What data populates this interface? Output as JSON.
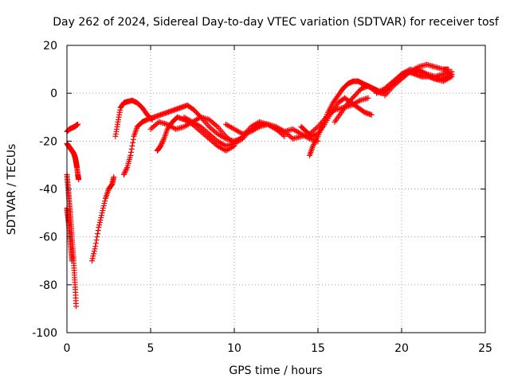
{
  "chart_data": {
    "type": "scatter",
    "title": "Day 262 of 2024, Sidereal Day-to-day VTEC variation (SDTVAR) for receiver tosf",
    "xlabel": "GPS time / hours",
    "ylabel": "SDTVAR / TECUs",
    "xlim": [
      0,
      25
    ],
    "ylim": [
      -100,
      20
    ],
    "xticks": [
      "0",
      "5",
      "10",
      "15",
      "20",
      "25"
    ],
    "yticks": [
      "-100",
      "-80",
      "-60",
      "-40",
      "-20",
      "0",
      "20"
    ],
    "grid": true,
    "marker": "+",
    "colors": {
      "points": "#ff0000",
      "grid": "#a0a0a0",
      "axes": "#000000"
    },
    "series": [
      {
        "segments": [
          {
            "x": [
              0.0,
              0.15,
              0.3,
              0.45,
              0.55,
              0.65
            ],
            "y": [
              -16,
              -15,
              -14.5,
              -14,
              -13.5,
              -13
            ]
          },
          {
            "x": [
              0.0,
              0.1,
              0.2,
              0.3,
              0.4,
              0.5,
              0.55,
              0.6,
              0.65,
              0.7
            ],
            "y": [
              -21,
              -22,
              -23,
              -24,
              -25,
              -27,
              -29,
              -31,
              -34,
              -36
            ]
          },
          {
            "x": [
              0.0,
              0.05,
              0.1,
              0.15,
              0.2,
              0.25,
              0.3,
              0.35,
              0.4,
              0.45,
              0.5,
              0.55
            ],
            "y": [
              -34,
              -38,
              -42,
              -46,
              -50,
              -55,
              -60,
              -65,
              -70,
              -76,
              -82,
              -89
            ]
          },
          {
            "x": [
              0.0,
              0.05,
              0.1,
              0.15,
              0.2,
              0.25,
              0.3
            ],
            "y": [
              -48,
              -51,
              -54,
              -58,
              -62,
              -66,
              -70
            ]
          },
          {
            "x": [
              1.5,
              1.7,
              1.9,
              2.1,
              2.3,
              2.5,
              2.7,
              2.8
            ],
            "y": [
              -70,
              -64,
              -56,
              -50,
              -44,
              -40,
              -38,
              -35
            ]
          },
          {
            "x": [
              2.9,
              3.05,
              3.2,
              3.4,
              3.6,
              3.9,
              4.2,
              4.5,
              4.8,
              5.1
            ],
            "y": [
              -18,
              -12,
              -6,
              -4,
              -3.5,
              -3,
              -4,
              -6,
              -9,
              -11
            ]
          },
          {
            "x": [
              3.4,
              3.6,
              3.8,
              4.0,
              4.2,
              4.5,
              4.8,
              5.2,
              5.6,
              6.0,
              6.4,
              6.8,
              7.2,
              7.6,
              8.0,
              8.5,
              9.0,
              9.5,
              10.0,
              10.4
            ],
            "y": [
              -34,
              -31,
              -26,
              -18,
              -14,
              -12,
              -11,
              -10,
              -9,
              -8,
              -7,
              -6,
              -5,
              -7,
              -10,
              -14,
              -17,
              -19,
              -20,
              -19
            ]
          },
          {
            "x": [
              5.4,
              5.6,
              5.8,
              6.0,
              6.3,
              6.6,
              7.0,
              7.5,
              8.0,
              8.5,
              9.0,
              9.5,
              10.0
            ],
            "y": [
              -24,
              -22,
              -19,
              -15,
              -12,
              -10,
              -11,
              -13,
              -16,
              -19,
              -22,
              -24,
              -22
            ]
          },
          {
            "x": [
              5.0,
              5.5,
              6.0,
              6.5,
              7.0,
              7.5,
              8.0,
              8.5,
              9.0,
              9.5,
              10.0,
              10.5,
              11.0,
              11.5,
              12.0,
              12.5,
              13.0
            ],
            "y": [
              -15,
              -12,
              -13,
              -15,
              -14,
              -12,
              -10,
              -11,
              -14,
              -18,
              -21,
              -19,
              -15,
              -13,
              -13,
              -15,
              -18
            ]
          },
          {
            "x": [
              7.0,
              7.5,
              8.0,
              8.5,
              9.0,
              9.5,
              10.0,
              10.5,
              11.0,
              11.5,
              12.0,
              12.5,
              13.0,
              13.5,
              14.0,
              14.5,
              15.0
            ],
            "y": [
              -10,
              -12,
              -14,
              -17,
              -20,
              -22,
              -21,
              -18,
              -14,
              -12,
              -13,
              -15,
              -16,
              -15,
              -17,
              -19,
              -20
            ]
          },
          {
            "x": [
              9.5,
              10.0,
              10.5,
              11.0,
              11.5,
              12.0,
              12.5,
              13.0,
              13.5,
              14.0,
              14.5,
              15.0,
              15.5,
              16.0,
              16.5,
              17.0,
              17.5,
              18.0
            ],
            "y": [
              -13,
              -15,
              -17,
              -16,
              -14,
              -13,
              -14,
              -16,
              -19,
              -18,
              -17,
              -14,
              -10,
              -7,
              -6,
              -5,
              -3,
              -2
            ]
          },
          {
            "x": [
              14.5,
              14.7,
              15.0,
              15.3,
              15.6,
              15.9,
              16.2,
              16.5,
              16.8,
              17.1,
              17.4,
              17.7,
              18.0,
              18.3,
              18.6,
              19.0
            ],
            "y": [
              -26,
              -22,
              -18,
              -13,
              -8,
              -4,
              -1,
              2,
              4,
              5,
              5,
              4,
              3,
              2,
              1,
              0
            ]
          },
          {
            "x": [
              14.0,
              14.3,
              14.6,
              15.0,
              15.4,
              15.8,
              16.2,
              16.6,
              17.0,
              17.4,
              17.8,
              18.2
            ],
            "y": [
              -14,
              -16,
              -18,
              -17,
              -13,
              -8,
              -4,
              -2,
              -4,
              -6,
              -8,
              -9
            ]
          },
          {
            "x": [
              16.0,
              16.4,
              16.8,
              17.2,
              17.6,
              18.0,
              18.4,
              18.8,
              19.2,
              19.6,
              20.0,
              20.4,
              20.8,
              21.2,
              21.6,
              22.0,
              22.4,
              22.8,
              23.0
            ],
            "y": [
              -12,
              -8,
              -4,
              -1,
              2,
              3,
              1,
              0,
              2,
              5,
              8,
              9,
              8,
              7,
              7,
              6,
              6,
              7,
              8
            ]
          },
          {
            "x": [
              18.5,
              19.0,
              19.5,
              20.0,
              20.5,
              21.0,
              21.5,
              22.0,
              22.5,
              23.0
            ],
            "y": [
              0,
              2,
              5,
              8,
              10,
              9,
              8,
              7,
              8,
              9
            ]
          },
          {
            "x": [
              19.0,
              19.5,
              20.0,
              20.5,
              21.0,
              21.5,
              22.0,
              22.5,
              22.8
            ],
            "y": [
              -1,
              3,
              6,
              9,
              11,
              12,
              11,
              10,
              10
            ]
          },
          {
            "x": [
              19.5,
              20.0,
              20.5,
              21.0,
              21.5,
              22.0,
              22.5,
              23.0
            ],
            "y": [
              4,
              7,
              9,
              10,
              8,
              6,
              5,
              7
            ]
          }
        ]
      }
    ]
  }
}
